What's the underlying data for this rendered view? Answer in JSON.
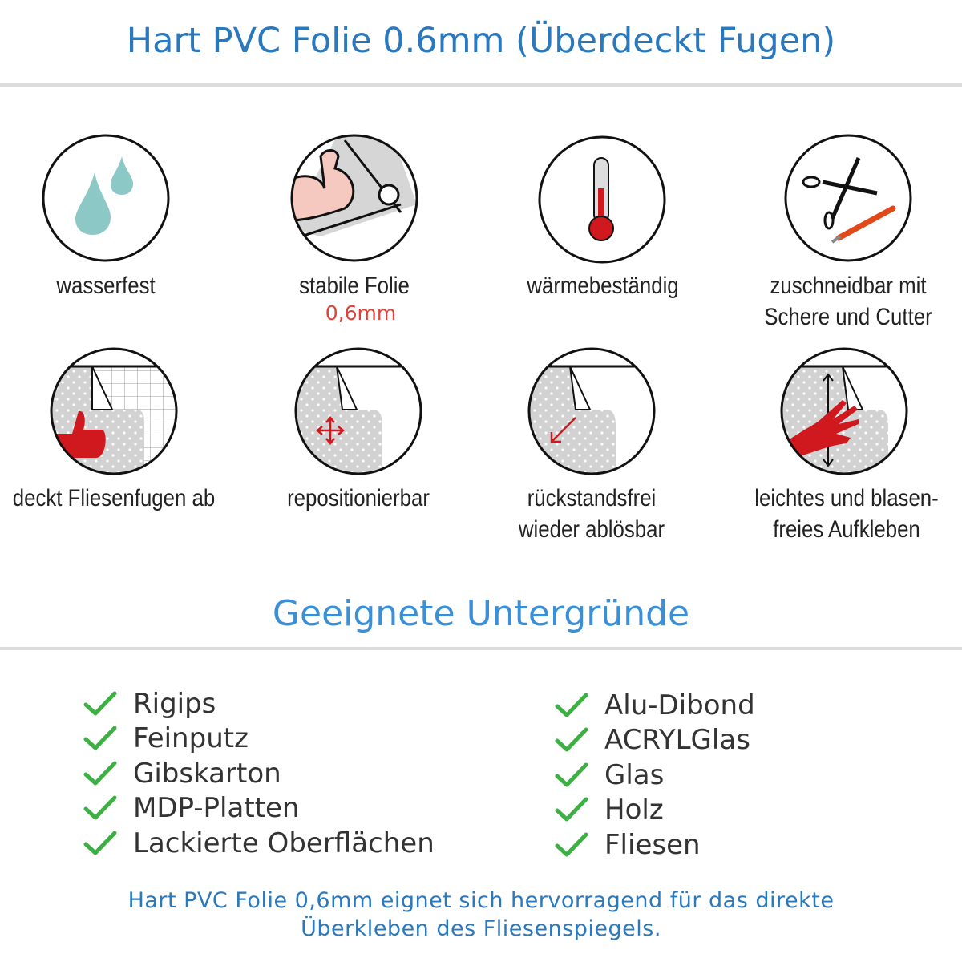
{
  "header": {
    "title": "Hart PVC Folie 0.6mm (Überdeckt Fugen)"
  },
  "features": [
    {
      "icon": "water-drops-icon",
      "label": "wasserfest"
    },
    {
      "icon": "strong-arm-icon",
      "label": "stabile Folie",
      "sublabel": "0,6mm"
    },
    {
      "icon": "thermometer-icon",
      "label": "wärmebeständig"
    },
    {
      "icon": "scissors-cutter-icon",
      "label": "zuschneidbar mit",
      "label2": "Schere und Cutter"
    },
    {
      "icon": "thumbs-up-tiles-icon",
      "label": "deckt Fliesenfugen ab"
    },
    {
      "icon": "move-arrows-icon",
      "label": "repositionierbar"
    },
    {
      "icon": "peel-arrow-icon",
      "label": "rückstandsfrei",
      "label2": "wieder ablösbar"
    },
    {
      "icon": "hand-smooth-icon",
      "label": "leichtes und blasen-",
      "label2": "freies Aufkleben"
    }
  ],
  "surfaces": {
    "title": "Geeignete Untergründe",
    "left": [
      "Rigips",
      "Feinputz",
      "Gibskarton",
      "MDP-Platten",
      "Lackierte Oberflächen"
    ],
    "right": [
      "Alu-Dibond",
      "ACRYLGlas",
      "Glas",
      "Holz",
      "Fliesen"
    ]
  },
  "footer": {
    "line1": "Hart PVC Folie 0,6mm eignet sich hervorragend für das direkte",
    "line2": "Überkleben des Fliesenspiegels."
  },
  "colors": {
    "title": "#2a78bd",
    "check": "#3cb043",
    "accent": "#d0191f",
    "drop": "#8cc9c6"
  }
}
